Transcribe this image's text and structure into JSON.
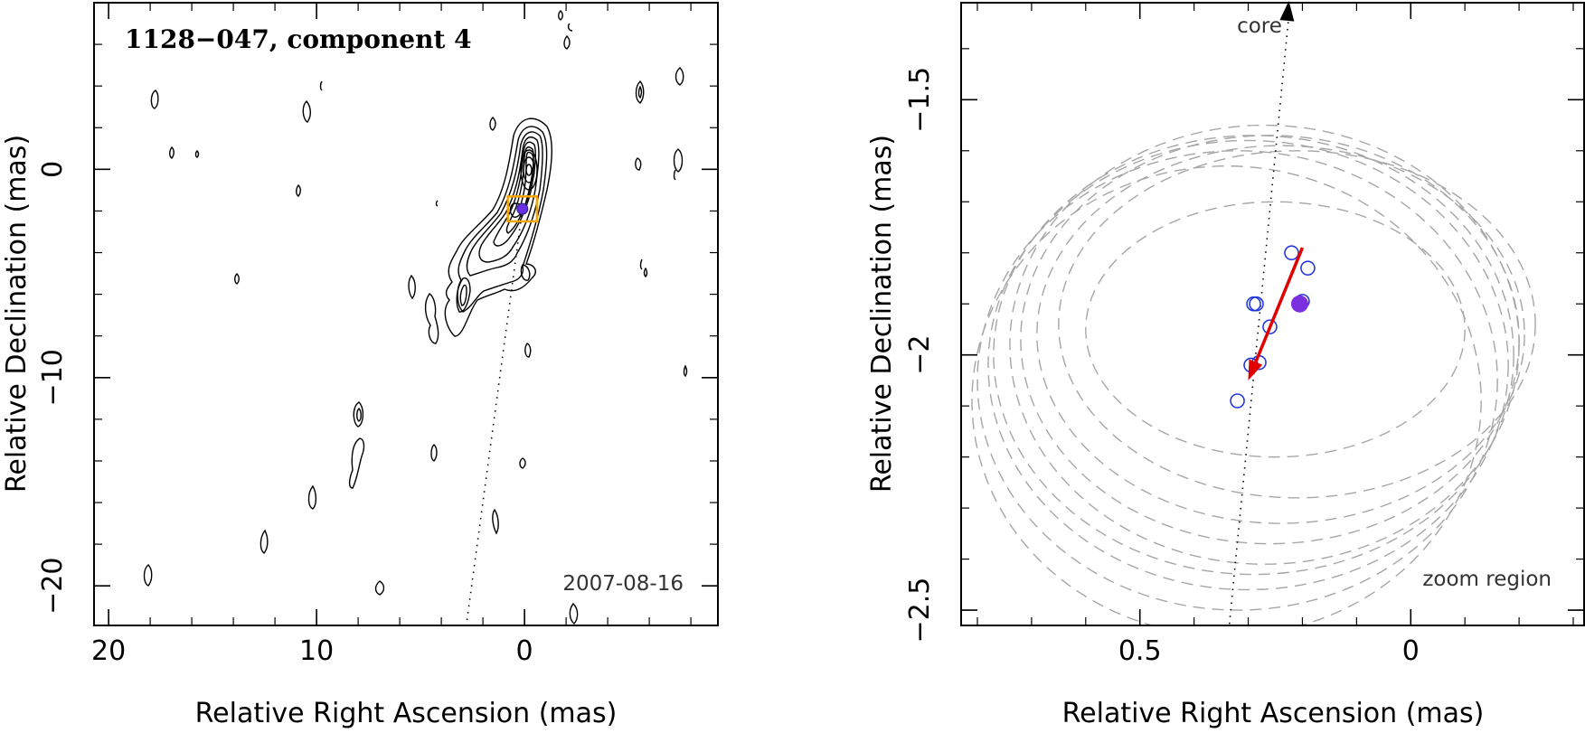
{
  "chart_data": [
    {
      "type": "contour",
      "title": "1128−047, component 4",
      "xlabel": "Relative Right Ascension (mas)",
      "ylabel": "Relative Declination (mas)",
      "xlim": [
        20.7,
        -9.3
      ],
      "ylim": [
        -21.9,
        8.0
      ],
      "x_ticks": [
        20,
        10,
        0
      ],
      "y_ticks": [
        0,
        -10,
        -20
      ],
      "x_tick_labels": [
        "20",
        "10",
        "0"
      ],
      "y_tick_labels": [
        "0",
        "−10",
        "−20"
      ],
      "epoch": "2007-08-16",
      "component_position": [
        0.1,
        -1.9
      ],
      "zoom_box": {
        "x": [
          -0.6,
          0.8
        ],
        "y": [
          -2.5,
          -1.3
        ]
      },
      "jet_direction_line": [
        [
          0.1,
          -1.9
        ],
        [
          2.8,
          -21.9
        ]
      ]
    },
    {
      "type": "scatter",
      "xlabel": "Relative Right Ascension (mas)",
      "ylabel": "Relative Declination (mas)",
      "xlim": [
        0.83,
        -0.32
      ],
      "ylim": [
        -2.53,
        -1.31
      ],
      "x_ticks": [
        0.5,
        0.0
      ],
      "y_ticks": [
        -1.5,
        -2.0,
        -2.5
      ],
      "x_tick_labels": [
        "0.5",
        "0"
      ],
      "y_tick_labels": [
        "−1.5",
        "−2",
        "−2.5"
      ],
      "core_label": "core",
      "zoom_label": "zoom region",
      "epochs": [
        {
          "x": 0.22,
          "y": -1.8
        },
        {
          "x": 0.19,
          "y": -1.83
        },
        {
          "x": 0.29,
          "y": -1.9
        },
        {
          "x": 0.285,
          "y": -1.9
        },
        {
          "x": 0.2,
          "y": -1.895
        },
        {
          "x": 0.26,
          "y": -1.945
        },
        {
          "x": 0.28,
          "y": -2.015
        },
        {
          "x": 0.295,
          "y": -2.02
        },
        {
          "x": 0.32,
          "y": -2.09
        }
      ],
      "current_epoch": {
        "x": 0.205,
        "y": -1.9
      },
      "motion_vector": {
        "from": [
          0.2,
          -1.79
        ],
        "to": [
          0.3,
          -2.05
        ]
      },
      "jet_direction_line": [
        [
          0.225,
          -1.31
        ],
        [
          0.335,
          -2.53
        ]
      ],
      "error_ellipses": [
        {
          "cx": 0.25,
          "cy": -1.95,
          "rx": 0.35,
          "ry": 0.25
        },
        {
          "cx": 0.21,
          "cy": -1.94,
          "rx": 0.44,
          "ry": 0.34
        },
        {
          "cx": 0.24,
          "cy": -1.96,
          "rx": 0.45,
          "ry": 0.37
        },
        {
          "cx": 0.26,
          "cy": -1.97,
          "rx": 0.46,
          "ry": 0.4
        },
        {
          "cx": 0.27,
          "cy": -1.98,
          "rx": 0.47,
          "ry": 0.43
        },
        {
          "cx": 0.29,
          "cy": -2.0,
          "rx": 0.48,
          "ry": 0.43
        },
        {
          "cx": 0.3,
          "cy": -2.02,
          "rx": 0.48,
          "ry": 0.44
        },
        {
          "cx": 0.32,
          "cy": -2.05,
          "rx": 0.48,
          "ry": 0.45
        },
        {
          "cx": 0.34,
          "cy": -2.09,
          "rx": 0.47,
          "ry": 0.46
        }
      ]
    }
  ]
}
